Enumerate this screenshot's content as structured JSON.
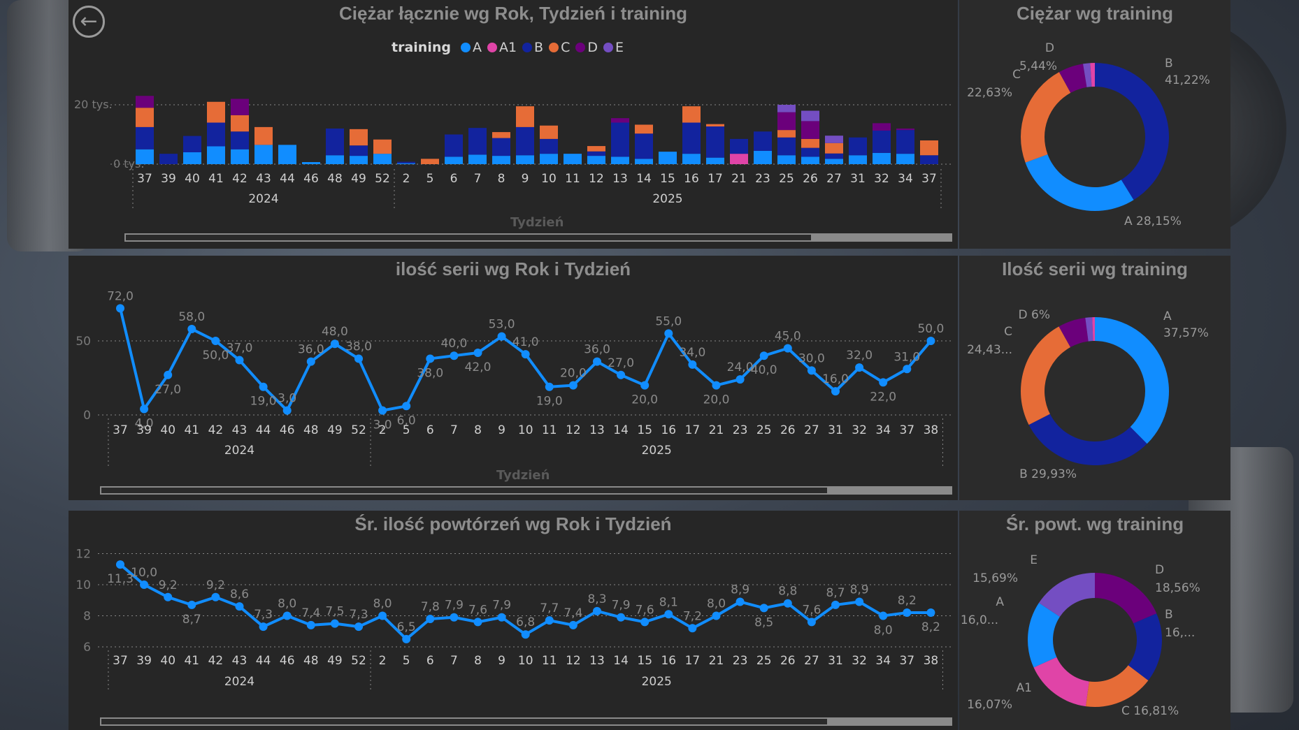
{
  "nav": {
    "back_icon": "arrow-left-icon",
    "back_label": "back"
  },
  "colors": {
    "A": "#118dff",
    "A1": "#e044a7",
    "B": "#12239e",
    "C": "#e66c37",
    "D": "#6b007b",
    "E": "#744ec2"
  },
  "panels": {
    "weight_bar": {
      "title": "Ciężar łącznie wg Rok, Tydzień i training",
      "axis_title": "Tydzień"
    },
    "weight_donut": {
      "title": "Ciężar wg training"
    },
    "series_line": {
      "title": "ilość serii wg Rok i Tydzień",
      "axis_title": "Tydzień"
    },
    "series_donut": {
      "title": "Ilość serii wg training"
    },
    "reps_line": {
      "title": "Śr. ilość powtórzeń wg Rok i Tydzień"
    },
    "reps_donut": {
      "title": "Śr. powt. wg training"
    }
  },
  "legend": {
    "title": "training",
    "items": [
      "A",
      "A1",
      "B",
      "C",
      "D",
      "E"
    ]
  },
  "chart_data": [
    {
      "type": "bar",
      "stacked": true,
      "title": "Ciężar łącznie wg Rok, Tydzień i training",
      "xlabel": "Tydzień",
      "ylabel": "",
      "ylim": [
        0,
        22000
      ],
      "yticks": [
        "0 tys.",
        "20 tys."
      ],
      "categories": [
        "37",
        "39",
        "40",
        "41",
        "42",
        "43",
        "44",
        "46",
        "48",
        "49",
        "52",
        "2",
        "5",
        "6",
        "7",
        "8",
        "9",
        "10",
        "11",
        "12",
        "13",
        "14",
        "15",
        "16",
        "17",
        "21",
        "23",
        "25",
        "26",
        "27",
        "31",
        "32",
        "34",
        "37"
      ],
      "year_groups": [
        {
          "label": "2024",
          "count": 11
        },
        {
          "label": "2025",
          "count": 23
        }
      ],
      "series": [
        {
          "name": "A",
          "values": [
            5000,
            0,
            4000,
            6000,
            5000,
            6500,
            6500,
            700,
            3000,
            2800,
            3500,
            300,
            0,
            2500,
            3200,
            2800,
            3000,
            3500,
            3500,
            2800,
            2500,
            1800,
            4200,
            3500,
            2200,
            0,
            4500,
            3000,
            2500,
            1800,
            3000,
            3800,
            3500,
            0
          ]
        },
        {
          "name": "A1",
          "values": [
            0,
            0,
            0,
            0,
            0,
            0,
            0,
            0,
            0,
            0,
            0,
            0,
            0,
            0,
            0,
            0,
            0,
            0,
            0,
            0,
            0,
            0,
            0,
            0,
            0,
            3500,
            0,
            0,
            0,
            0,
            0,
            0,
            0,
            0
          ]
        },
        {
          "name": "B",
          "values": [
            7500,
            3500,
            5500,
            8000,
            6000,
            0,
            0,
            0,
            9000,
            3500,
            0,
            500,
            0,
            7500,
            9000,
            6000,
            9500,
            5000,
            0,
            1500,
            11500,
            8500,
            0,
            10500,
            10500,
            5000,
            6500,
            6000,
            3000,
            1800,
            6000,
            7500,
            8000,
            3000
          ]
        },
        {
          "name": "C",
          "values": [
            6500,
            0,
            0,
            7000,
            5500,
            6000,
            0,
            0,
            0,
            5500,
            4800,
            0,
            1800,
            0,
            0,
            2000,
            7000,
            4500,
            0,
            1800,
            0,
            3000,
            0,
            5500,
            800,
            0,
            0,
            2500,
            3000,
            3500,
            0,
            0,
            0,
            5000
          ]
        },
        {
          "name": "D",
          "values": [
            4000,
            0,
            0,
            0,
            5500,
            0,
            0,
            0,
            0,
            0,
            0,
            0,
            0,
            0,
            0,
            0,
            0,
            0,
            0,
            0,
            1500,
            0,
            0,
            0,
            0,
            0,
            0,
            6000,
            6000,
            0,
            0,
            2500,
            500,
            0
          ]
        },
        {
          "name": "E",
          "values": [
            0,
            0,
            0,
            0,
            0,
            0,
            0,
            0,
            0,
            0,
            0,
            0,
            0,
            0,
            0,
            0,
            0,
            0,
            0,
            0,
            0,
            0,
            0,
            0,
            0,
            0,
            0,
            2500,
            3500,
            2500,
            0,
            0,
            0,
            0
          ]
        }
      ]
    },
    {
      "type": "pie",
      "donut": true,
      "title": "Ciężar wg training",
      "slices": [
        {
          "name": "B",
          "value": 41.22,
          "label": "B",
          "pct": "41,22%"
        },
        {
          "name": "A",
          "value": 28.15,
          "label": "A 28,15%",
          "pct": ""
        },
        {
          "name": "C",
          "value": 22.63,
          "label": "C",
          "pct": "22,63%"
        },
        {
          "name": "D",
          "value": 5.44,
          "label": "D",
          "pct": "5,44%"
        },
        {
          "name": "E",
          "value": 1.56,
          "label": "",
          "pct": ""
        },
        {
          "name": "A1",
          "value": 1.0,
          "label": "",
          "pct": ""
        }
      ]
    },
    {
      "type": "line",
      "title": "ilość serii wg Rok i Tydzień",
      "xlabel": "Tydzień",
      "ylim": [
        0,
        72
      ],
      "yticks": [
        "0",
        "50"
      ],
      "categories": [
        "37",
        "39",
        "40",
        "41",
        "42",
        "43",
        "44",
        "46",
        "48",
        "49",
        "52",
        "2",
        "5",
        "6",
        "7",
        "8",
        "9",
        "10",
        "11",
        "12",
        "13",
        "14",
        "15",
        "16",
        "17",
        "21",
        "23",
        "25",
        "26",
        "27",
        "31",
        "32",
        "34",
        "37",
        "38"
      ],
      "year_groups": [
        {
          "label": "2024",
          "count": 11
        },
        {
          "label": "2025",
          "count": 24
        }
      ],
      "values": [
        72,
        4,
        27,
        58,
        50,
        37,
        19,
        3,
        36,
        48,
        38,
        3,
        6,
        38,
        40,
        42,
        53,
        41,
        19,
        20,
        36,
        27,
        20,
        55,
        34,
        20,
        24,
        40,
        45,
        30,
        16,
        32,
        22,
        31,
        50
      ],
      "labels": [
        "72,0",
        "4,0",
        "27,0",
        "58,0",
        "50,0",
        "37,0",
        "19,0",
        "3,0",
        "36,0",
        "48,0",
        "38,0",
        "3,0",
        "6,0",
        "38,0",
        "40,0",
        "42,0",
        "53,0",
        "41,0",
        "19,0",
        "20,0",
        "36,0",
        "27,0",
        "20,0",
        "55,0",
        "34,0",
        "20,0",
        "24,0",
        "40,0",
        "45,0",
        "30,0",
        "16,0",
        "32,0",
        "22,0",
        "31,0",
        "50,0"
      ],
      "label_pos": [
        -1,
        1,
        1,
        -1,
        1,
        -1,
        1,
        -1,
        -1,
        -1,
        -1,
        1,
        1,
        1,
        -1,
        1,
        -1,
        -1,
        1,
        -1,
        -1,
        -1,
        1,
        -1,
        -1,
        1,
        -1,
        1,
        -1,
        -1,
        -1,
        -1,
        1,
        -1,
        -1
      ]
    },
    {
      "type": "pie",
      "donut": true,
      "title": "Ilość serii wg training",
      "slices": [
        {
          "name": "A",
          "value": 37.57,
          "label": "A",
          "pct": "37,57%"
        },
        {
          "name": "B",
          "value": 29.93,
          "label": "B 29,93%",
          "pct": ""
        },
        {
          "name": "C",
          "value": 24.43,
          "label": "C",
          "pct": "24,43..."
        },
        {
          "name": "D",
          "value": 6.0,
          "label": "D 6%",
          "pct": ""
        },
        {
          "name": "E",
          "value": 1.5,
          "label": "",
          "pct": ""
        },
        {
          "name": "A1",
          "value": 0.57,
          "label": "",
          "pct": ""
        }
      ]
    },
    {
      "type": "line",
      "title": "Śr. ilość powtórzeń wg Rok i Tydzień",
      "ylim": [
        6,
        12
      ],
      "yticks": [
        "6",
        "8",
        "10",
        "12"
      ],
      "categories": [
        "37",
        "39",
        "40",
        "41",
        "42",
        "43",
        "44",
        "46",
        "48",
        "49",
        "52",
        "2",
        "5",
        "6",
        "7",
        "8",
        "9",
        "10",
        "11",
        "12",
        "13",
        "14",
        "15",
        "16",
        "17",
        "21",
        "23",
        "25",
        "26",
        "27",
        "31",
        "32",
        "34",
        "37",
        "38"
      ],
      "year_groups": [
        {
          "label": "2024",
          "count": 11
        },
        {
          "label": "2025",
          "count": 24
        }
      ],
      "values": [
        11.3,
        10.0,
        9.2,
        8.7,
        9.2,
        8.6,
        7.3,
        8.0,
        7.4,
        7.5,
        7.3,
        8.0,
        6.5,
        7.8,
        7.9,
        7.6,
        7.9,
        6.8,
        7.7,
        7.4,
        8.3,
        7.9,
        7.6,
        8.1,
        7.2,
        8.0,
        8.9,
        8.5,
        8.8,
        7.6,
        8.7,
        8.9,
        8.0,
        8.2,
        8.2
      ],
      "labels": [
        "11,3",
        "10,0",
        "9,2",
        "8,7",
        "9,2",
        "8,6",
        "7,3",
        "8,0",
        "7,4",
        "7,5",
        "7,3",
        "8,0",
        "6,5",
        "7,8",
        "7,9",
        "7,6",
        "7,9",
        "6,8",
        "7,7",
        "7,4",
        "8,3",
        "7,9",
        "7,6",
        "8,1",
        "7,2",
        "8,0",
        "8,9",
        "8,5",
        "8,8",
        "7,6",
        "8,7",
        "8,9",
        "8,0",
        "8,2",
        "8,2"
      ],
      "label_pos": [
        1,
        -1,
        -1,
        1,
        -1,
        -1,
        -1,
        -1,
        -1,
        -1,
        -1,
        -1,
        -1,
        -1,
        -1,
        -1,
        -1,
        -1,
        -1,
        -1,
        -1,
        -1,
        -1,
        -1,
        -1,
        -1,
        -1,
        1,
        -1,
        -1,
        -1,
        -1,
        1,
        -1,
        1
      ]
    },
    {
      "type": "pie",
      "donut": true,
      "title": "Śr. powt. wg training",
      "slices": [
        {
          "name": "D",
          "value": 18.56,
          "label": "D",
          "pct": "18,56%"
        },
        {
          "name": "B",
          "value": 16.8,
          "label": "B",
          "pct": "16,..."
        },
        {
          "name": "C",
          "value": 16.81,
          "label": "C 16,81%",
          "pct": ""
        },
        {
          "name": "A1",
          "value": 16.07,
          "label": "A1",
          "pct": "16,07%"
        },
        {
          "name": "A",
          "value": 16.07,
          "label": "A",
          "pct": "16,0..."
        },
        {
          "name": "E",
          "value": 15.69,
          "label": "E",
          "pct": "15,69%"
        }
      ]
    }
  ]
}
